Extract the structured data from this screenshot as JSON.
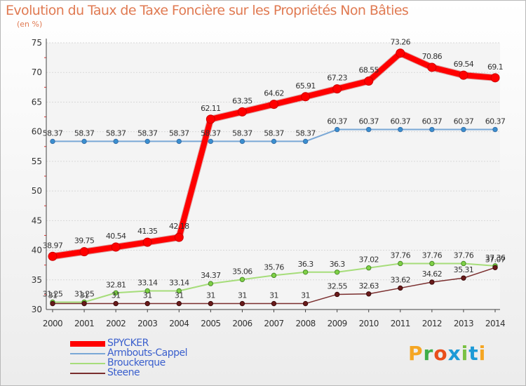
{
  "header": {
    "title": "Evolution du Taux de Taxe Foncière sur les Propriétés Non Bâties",
    "subtitle": "(en %)"
  },
  "logo": {
    "text": "Proxiti",
    "colors": [
      "#f5a623",
      "#3fae49",
      "#e94e1b",
      "#1d9ad6",
      "#7ac143",
      "#1d9ad6",
      "#f5a623"
    ]
  },
  "chart_data": {
    "type": "line",
    "title": "Evolution du Taux de Taxe Foncière sur les Propriétés Non Bâties",
    "ylabel": "(en %)",
    "xlabel": "",
    "ylim": [
      30,
      75
    ],
    "yticks": [
      30,
      35,
      40,
      45,
      50,
      55,
      60,
      65,
      70,
      75
    ],
    "grid": "horizontal",
    "legend": "bottom-left",
    "x": [
      "2000",
      "2001",
      "2002",
      "2003",
      "2004",
      "2005",
      "2006",
      "2007",
      "2008",
      "2009",
      "2010",
      "2011",
      "2012",
      "2013",
      "2014"
    ],
    "series": [
      {
        "name": "SPYCKER",
        "color": "#ff0000",
        "values": [
          38.97,
          39.75,
          40.54,
          41.35,
          42.18,
          62.11,
          63.35,
          64.62,
          65.91,
          67.23,
          68.55,
          73.26,
          70.86,
          69.54,
          69.1
        ],
        "labels": [
          "38.97",
          "39.75",
          "40.54",
          "41.35",
          "42.18",
          "62.11",
          "63.35",
          "64.62",
          "65.91",
          "67.23",
          "68.55",
          "73.26",
          "70.86",
          "69.54",
          "69.1"
        ]
      },
      {
        "name": "Armbouts-Cappel",
        "color": "#6fa3d8",
        "values": [
          58.37,
          58.37,
          58.37,
          58.37,
          58.37,
          58.37,
          58.37,
          58.37,
          58.37,
          60.37,
          60.37,
          60.37,
          60.37,
          60.37,
          60.37
        ],
        "labels": [
          "58.37",
          "58.37",
          "58.37",
          "58.37",
          "58.37",
          "58.37",
          "58.37",
          "58.37",
          "58.37",
          "60.37",
          "60.37",
          "60.37",
          "60.37",
          "60.37",
          "60.37"
        ]
      },
      {
        "name": "Brouckerque",
        "color": "#a6dd7a",
        "values": [
          31.25,
          31.25,
          32.81,
          33.14,
          33.14,
          34.37,
          35.06,
          35.76,
          36.3,
          36.3,
          37.02,
          37.76,
          37.76,
          37.76,
          37.36
        ],
        "labels": [
          "31.25",
          "31.25",
          "32.81",
          "33.14",
          "33.14",
          "34.37",
          "35.06",
          "35.76",
          "36.3",
          "36.3",
          "37.02",
          "37.76",
          "37.76",
          "37.76",
          "37.36"
        ]
      },
      {
        "name": "Steene",
        "color": "#7a2e2e",
        "values": [
          31,
          31,
          31,
          31,
          31,
          31,
          31,
          31,
          31,
          32.55,
          32.63,
          33.62,
          34.62,
          35.31,
          37.07
        ],
        "labels": [
          "31",
          "31",
          "31",
          "31",
          "31",
          "31",
          "31",
          "31",
          "31",
          "32.55",
          "32.63",
          "33.62",
          "34.62",
          "35.31",
          "37.07"
        ]
      }
    ]
  }
}
